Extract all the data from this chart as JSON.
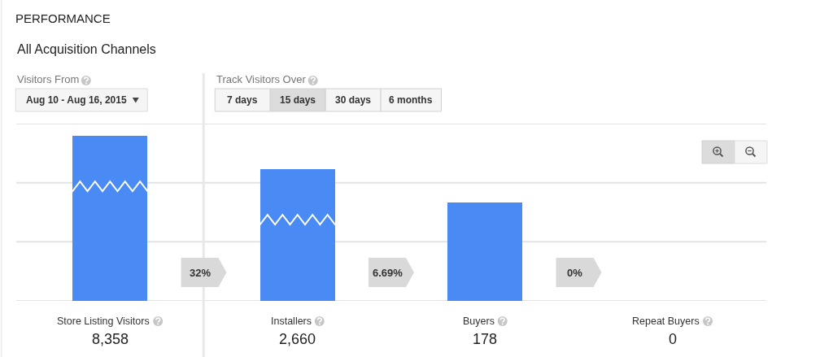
{
  "chart_data": {
    "type": "other",
    "title": "PERFORMANCE",
    "subtitle": "All Acquisition Channels",
    "categories": [
      "Store Listing Visitors",
      "Installers",
      "Buyers",
      "Repeat Buyers"
    ],
    "values": [
      8358,
      2660,
      178,
      0
    ],
    "value_labels": [
      "8,358",
      "2,660",
      "178",
      "0"
    ],
    "color": "#4a8af4",
    "annotations": [
      "Visitors From",
      "Aug 10 - Aug 16, 2015",
      "Track Visitors Over",
      "7 days",
      "15 days",
      "30 days",
      "6 months",
      "32%",
      "6.69%",
      "0%"
    ]
  }
}
